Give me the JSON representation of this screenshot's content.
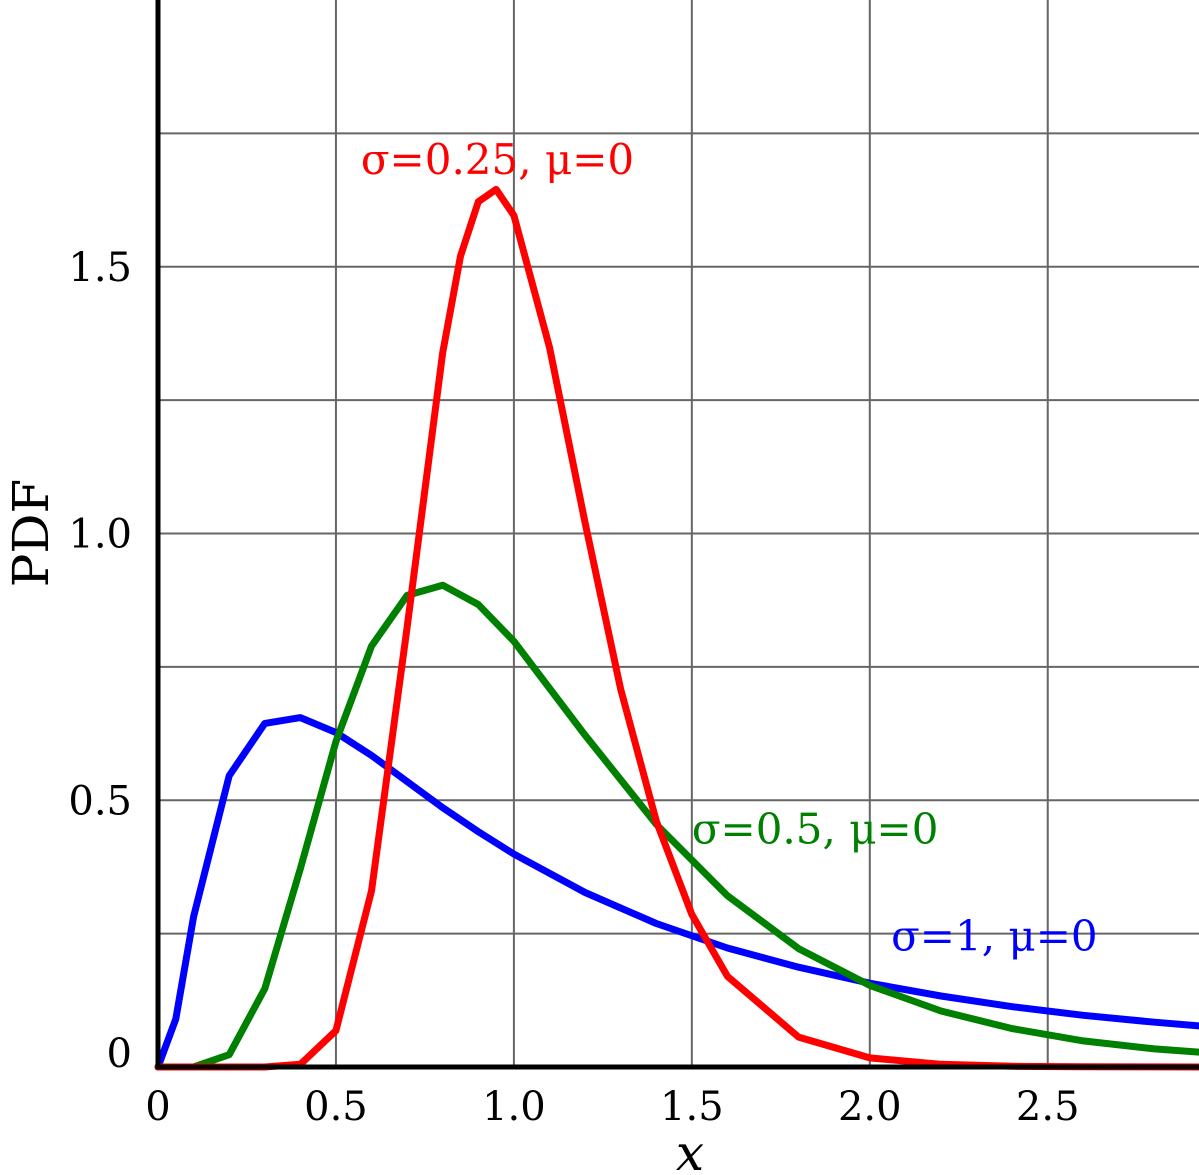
{
  "chart_data": {
    "type": "line",
    "title": "",
    "xlabel": "x",
    "ylabel": "PDF",
    "xlim": [
      0,
      2.925
    ],
    "ylim": [
      0,
      2.0
    ],
    "grid": true,
    "x_gridlines": [
      0.5,
      1.0,
      1.5,
      2.0,
      2.5
    ],
    "y_gridlines": [
      0.25,
      0.5,
      0.75,
      1.0,
      1.25,
      1.5,
      1.75
    ],
    "x_ticks": [
      {
        "value": 0,
        "label": "0"
      },
      {
        "value": 0.5,
        "label": "0.5"
      },
      {
        "value": 1.0,
        "label": "1.0"
      },
      {
        "value": 1.5,
        "label": "1.5"
      },
      {
        "value": 2.0,
        "label": "2.0"
      },
      {
        "value": 2.5,
        "label": "2.5"
      }
    ],
    "y_ticks": [
      {
        "value": 0,
        "label": "0"
      },
      {
        "value": 0.5,
        "label": "0.5"
      },
      {
        "value": 1.0,
        "label": "1.0"
      },
      {
        "value": 1.5,
        "label": "1.5"
      }
    ],
    "series": [
      {
        "name": "σ=1, μ=0",
        "color": "#0000ff",
        "x": [
          0,
          0.05,
          0.1,
          0.2,
          0.3,
          0.4,
          0.5,
          0.6,
          0.7,
          0.8,
          0.9,
          1.0,
          1.2,
          1.4,
          1.6,
          1.8,
          2.0,
          2.2,
          2.4,
          2.6,
          2.8,
          2.925
        ],
        "y": [
          0,
          0.09,
          0.282,
          0.546,
          0.644,
          0.655,
          0.627,
          0.584,
          0.535,
          0.486,
          0.441,
          0.399,
          0.327,
          0.269,
          0.223,
          0.187,
          0.157,
          0.133,
          0.113,
          0.097,
          0.084,
          0.077
        ]
      },
      {
        "name": "σ=0.5, μ=0",
        "color": "#008000",
        "x": [
          0,
          0.1,
          0.2,
          0.3,
          0.4,
          0.5,
          0.6,
          0.7,
          0.8,
          0.9,
          1.0,
          1.2,
          1.4,
          1.6,
          1.8,
          2.0,
          2.2,
          2.4,
          2.6,
          2.8,
          2.925
        ],
        "y": [
          0,
          0.0002,
          0.023,
          0.147,
          0.372,
          0.61,
          0.789,
          0.884,
          0.903,
          0.867,
          0.798,
          0.622,
          0.455,
          0.321,
          0.222,
          0.153,
          0.105,
          0.072,
          0.049,
          0.034,
          0.028
        ]
      },
      {
        "name": "σ=0.25, μ=0",
        "color": "#ff0000",
        "x": [
          0,
          0.3,
          0.4,
          0.5,
          0.6,
          0.7,
          0.8,
          0.85,
          0.9,
          0.95,
          1.0,
          1.1,
          1.2,
          1.3,
          1.4,
          1.5,
          1.6,
          1.8,
          2.0,
          2.2,
          2.4,
          2.6,
          2.8,
          2.925
        ],
        "y": [
          0,
          0,
          0.005,
          0.068,
          0.33,
          0.824,
          1.339,
          1.52,
          1.622,
          1.645,
          1.596,
          1.349,
          1.02,
          0.708,
          0.461,
          0.286,
          0.17,
          0.056,
          0.017,
          0.005,
          0.0014,
          0.0004,
          0.0001,
          0
        ]
      }
    ],
    "annotations": [
      {
        "text": "σ=0.25, μ=0",
        "color": "#ff0000",
        "x": 0.57,
        "y": 1.7
      },
      {
        "text": "σ=0.5, μ=0",
        "color": "#008000",
        "x": 1.5,
        "y": 0.445
      },
      {
        "text": "σ=1, μ=0",
        "color": "#0000ff",
        "x": 2.06,
        "y": 0.245
      }
    ]
  }
}
